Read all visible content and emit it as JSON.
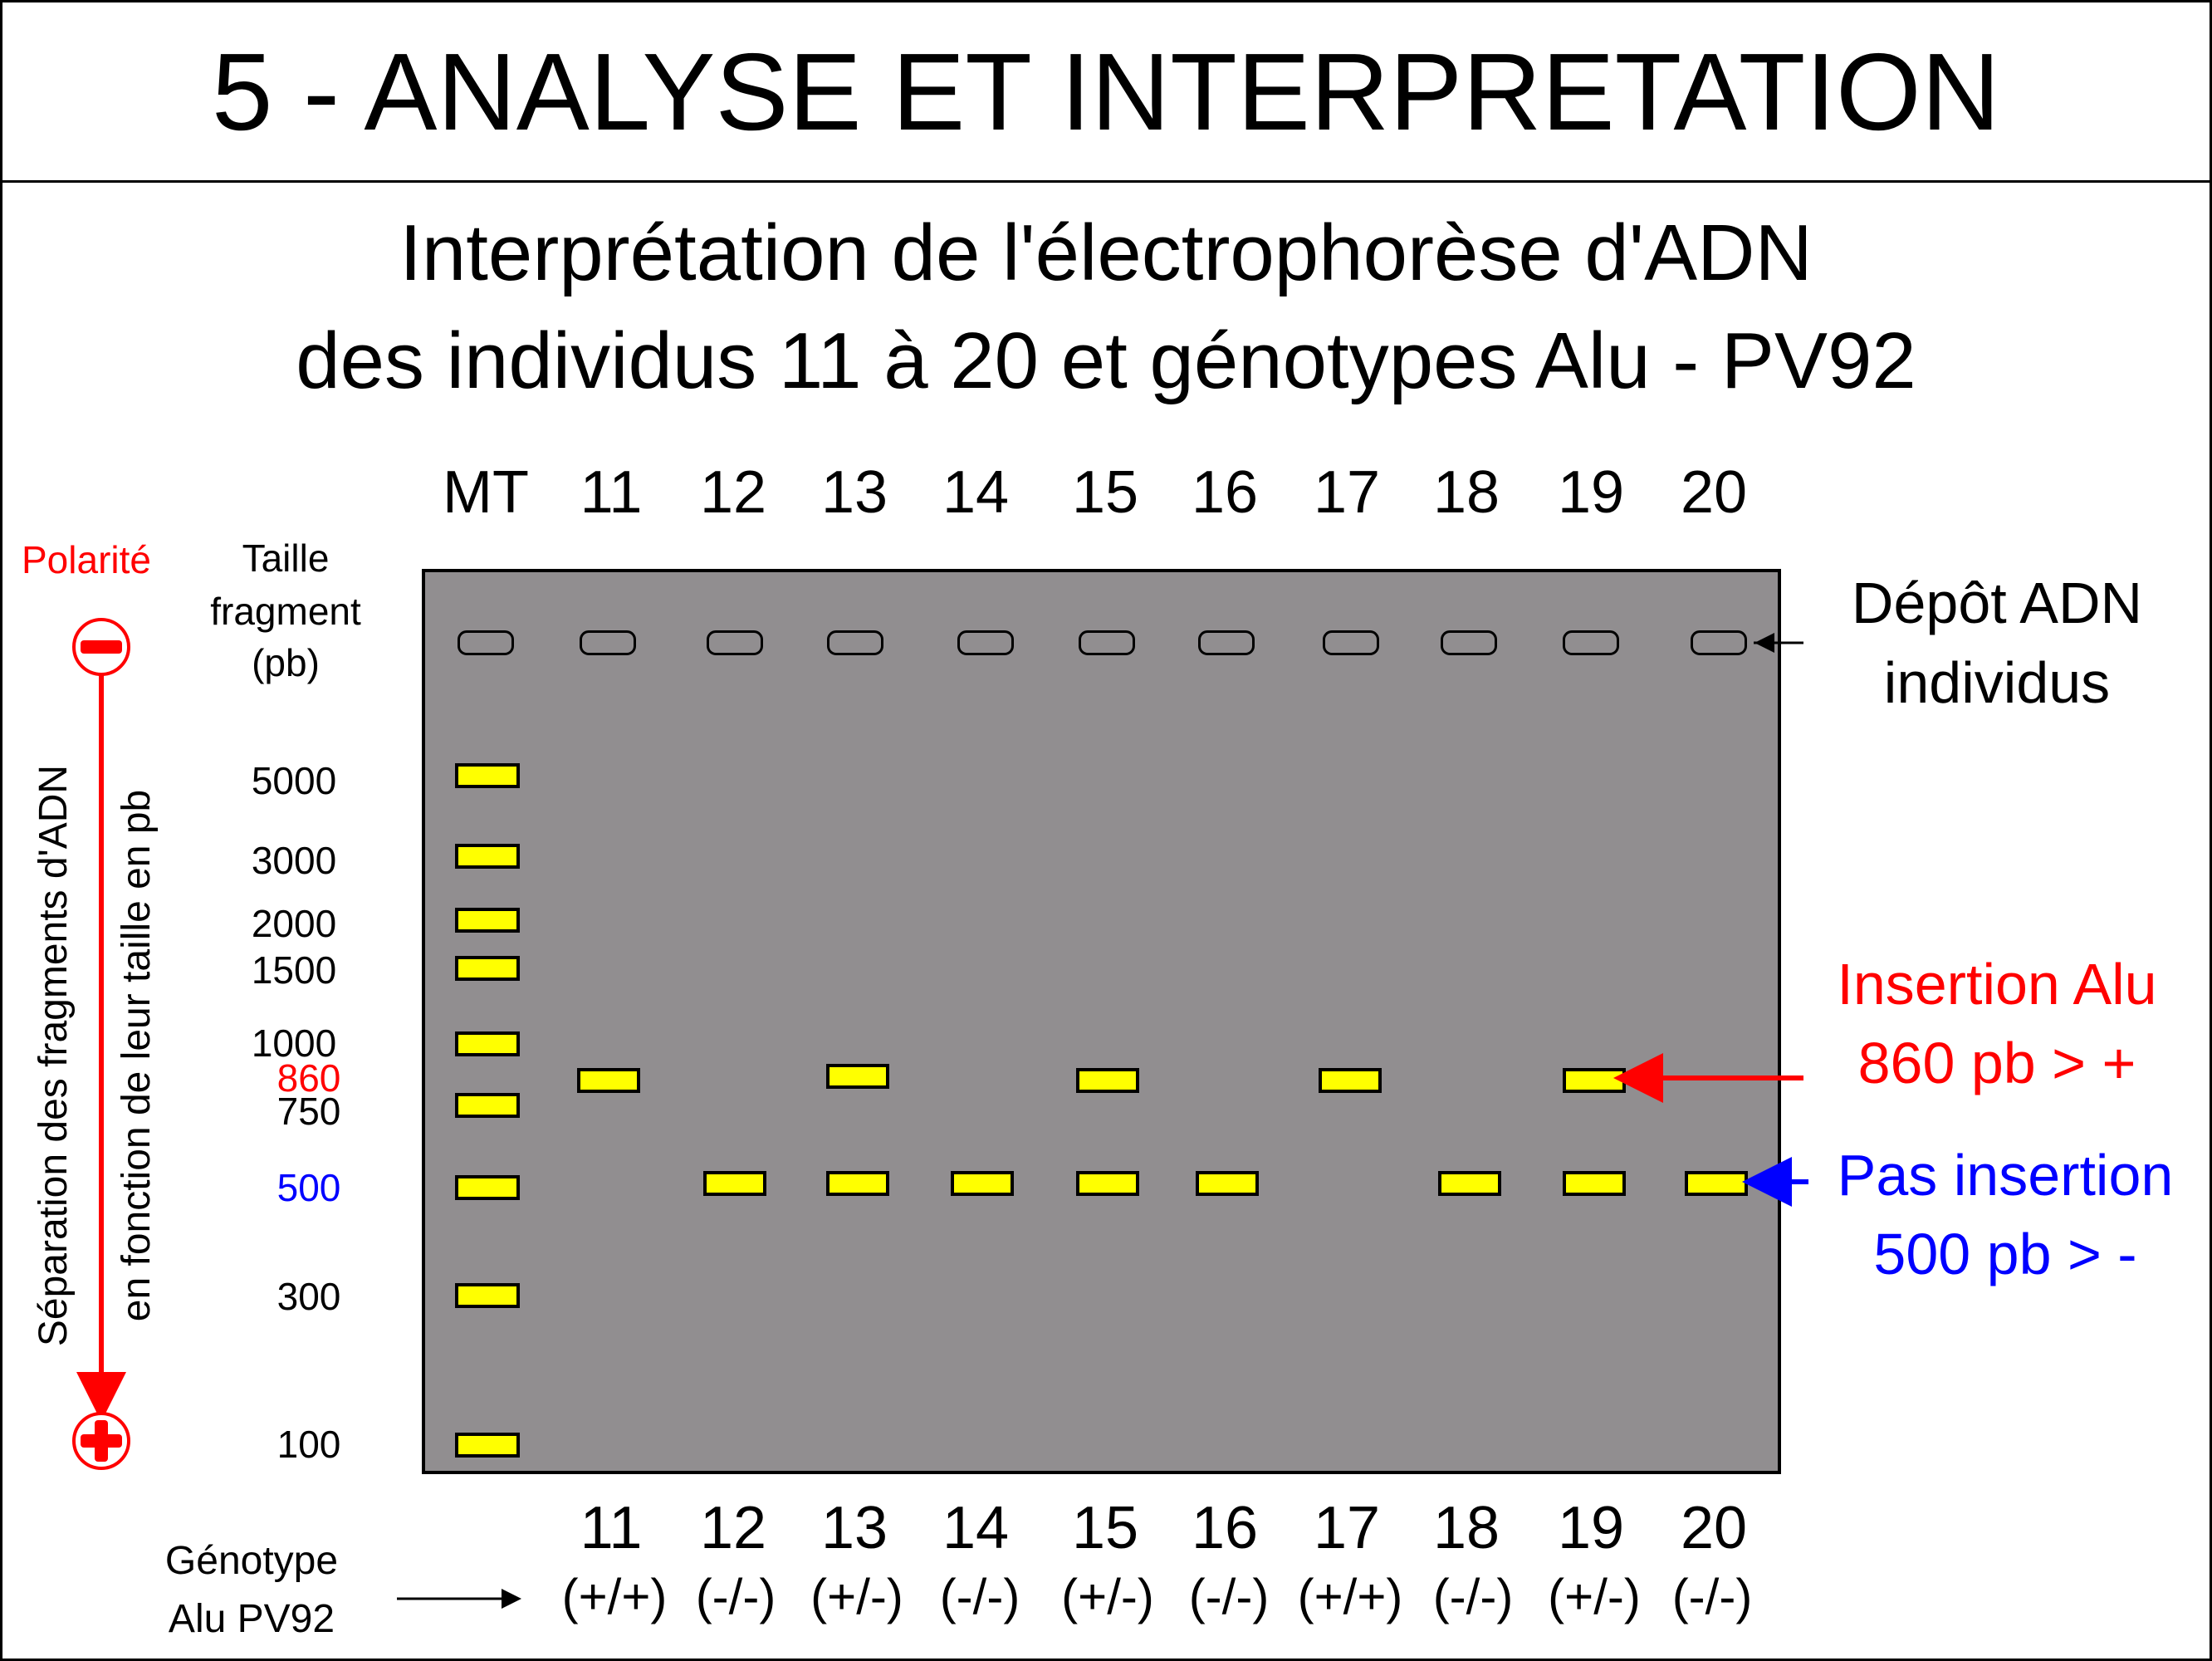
{
  "title": "5 - ANALYSE ET INTERPRETATION",
  "subtitle": {
    "line1": "Interprétation de l'électrophorèse d'ADN",
    "line2": "des individus 11 à 20 et génotypes Alu - PV92"
  },
  "lanes": [
    {
      "label": "MT"
    },
    {
      "label": "11",
      "genotype": "(+/+)"
    },
    {
      "label": "12",
      "genotype": "(-/-)"
    },
    {
      "label": "13",
      "genotype": "(+/-)"
    },
    {
      "label": "14",
      "genotype": "(-/-)"
    },
    {
      "label": "15",
      "genotype": "(+/-)"
    },
    {
      "label": "16",
      "genotype": "(-/-)"
    },
    {
      "label": "17",
      "genotype": "(+/+)"
    },
    {
      "label": "18",
      "genotype": "(-/-)"
    },
    {
      "label": "19",
      "genotype": "(+/-)"
    },
    {
      "label": "20",
      "genotype": "(-/-)"
    }
  ],
  "marker_sizes": [
    "5000",
    "3000",
    "2000",
    "1500",
    "1000",
    "860",
    "750",
    "500",
    "300",
    "100"
  ],
  "bands_bp": {
    "11": [
      860
    ],
    "12": [
      500
    ],
    "13": [
      860,
      500
    ],
    "14": [
      500
    ],
    "15": [
      860,
      500
    ],
    "16": [
      500
    ],
    "17": [
      860
    ],
    "18": [
      500
    ],
    "19": [
      860,
      500
    ],
    "20": [
      500
    ]
  },
  "left_panel": {
    "polarity_label": "Polarité",
    "size_header": [
      "Taille",
      "fragment",
      "(pb)"
    ],
    "separation_line1": "Séparation des fragments d'ADN",
    "separation_line2": "en fonction de leur taille en pb",
    "genotype_label": [
      "Génotype",
      "Alu PV92"
    ]
  },
  "right_panel": {
    "deposit_label": [
      "Dépôt ADN",
      "individus"
    ],
    "insertion_label": [
      "Insertion Alu",
      "860 pb > +"
    ],
    "no_insertion_label": [
      "Pas insertion",
      "500 pb > -"
    ]
  },
  "colors": {
    "gel": "#918e90",
    "band": "#ffff00",
    "insertion": "#ff0000",
    "no_insertion": "#0000ff",
    "highlight_860": "#ff0000",
    "highlight_500": "#0000ff"
  }
}
